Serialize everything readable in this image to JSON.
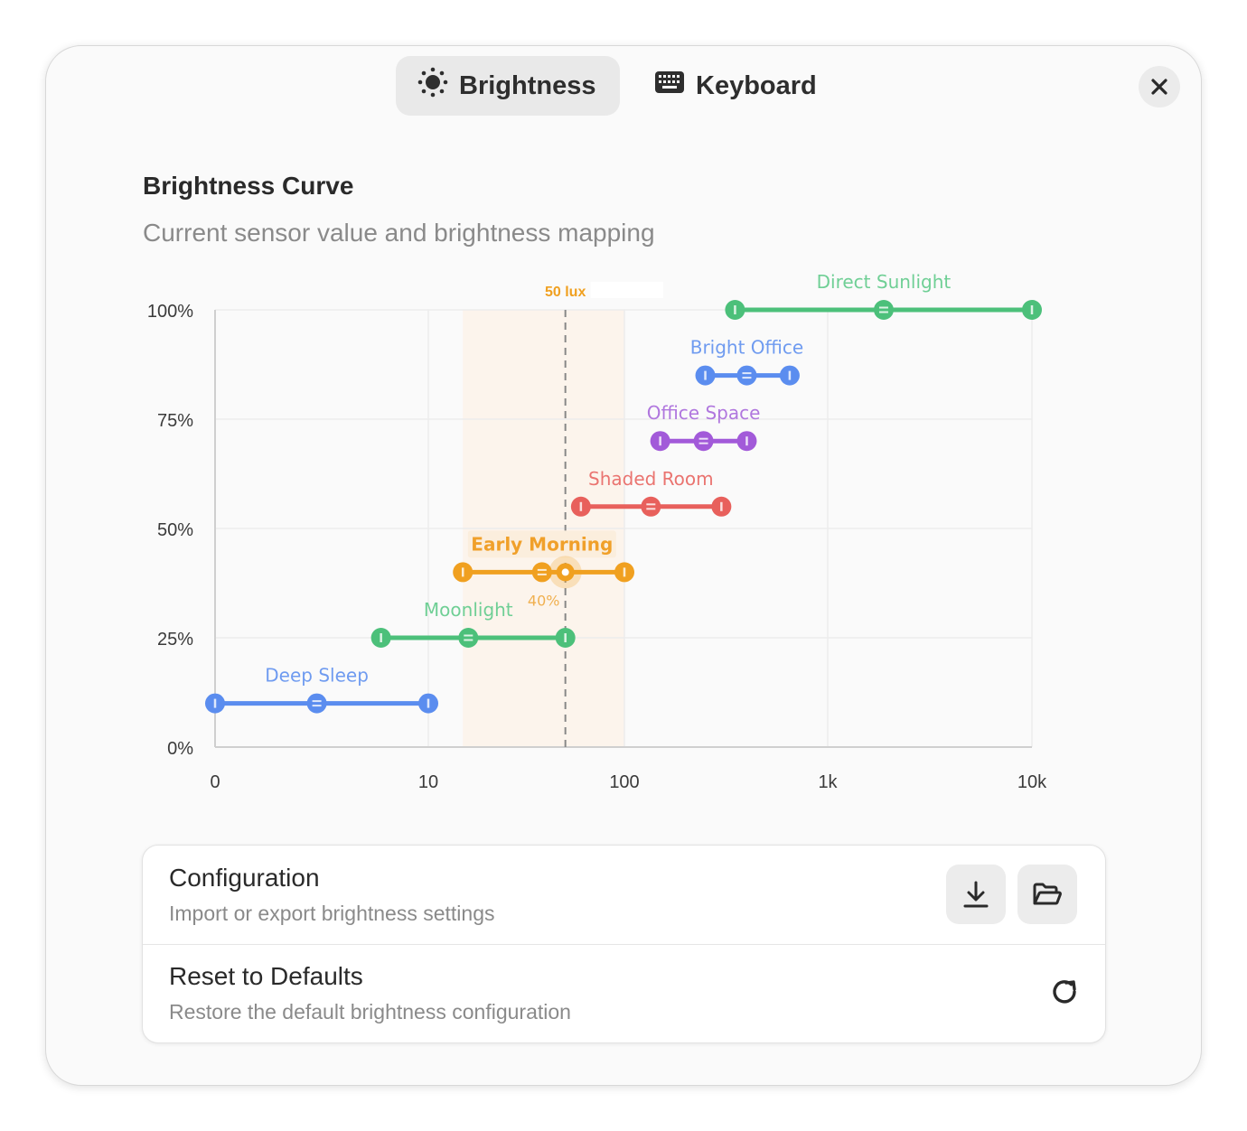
{
  "tabs": [
    {
      "label": "Brightness",
      "icon": "sun-icon",
      "active": true
    },
    {
      "label": "Keyboard",
      "icon": "keyboard-icon",
      "active": false
    }
  ],
  "header": {
    "close_icon": "close-icon"
  },
  "section": {
    "title": "Brightness Curve",
    "subtitle": "Current sensor value and brightness mapping"
  },
  "chart_data": {
    "type": "line",
    "x_scale": "log (0 shown at origin)",
    "x_ticks": [
      "0",
      "10",
      "100",
      "1k",
      "10k"
    ],
    "x_tick_values": [
      0,
      10,
      100,
      1000,
      10000
    ],
    "y_ticks": [
      "0%",
      "25%",
      "50%",
      "75%",
      "100%"
    ],
    "y_tick_values": [
      0,
      25,
      50,
      75,
      100
    ],
    "ylim": [
      0,
      100
    ],
    "grid": true,
    "current": {
      "label": "50 lux",
      "lux": 50,
      "brightness": 40,
      "brightness_label": "40%",
      "active_zone": "Early Morning",
      "zone_range": [
        15,
        100
      ]
    },
    "series": [
      {
        "name": "Deep Sleep",
        "color": "#5b8def",
        "label_color": "#6f9bf0",
        "brightness": 10,
        "min": 0,
        "mid": 3,
        "max": 10
      },
      {
        "name": "Moonlight",
        "color": "#4cc07a",
        "label_color": "#6fcf95",
        "brightness": 25,
        "min": 6,
        "mid": 16,
        "max": 50
      },
      {
        "name": "Early Morning",
        "color": "#f0a020",
        "label_color": "#f0a02a",
        "brightness": 40,
        "min": 15,
        "mid": 38,
        "max": 100
      },
      {
        "name": "Shaded Room",
        "color": "#e8605c",
        "label_color": "#ea7470",
        "brightness": 55,
        "min": 60,
        "mid": 135,
        "max": 300
      },
      {
        "name": "Office Space",
        "color": "#a25ad9",
        "label_color": "#b077de",
        "brightness": 70,
        "min": 150,
        "mid": 245,
        "max": 400
      },
      {
        "name": "Bright Office",
        "color": "#5b8def",
        "label_color": "#6f9bf0",
        "brightness": 85,
        "min": 250,
        "mid": 400,
        "max": 650
      },
      {
        "name": "Direct Sunlight",
        "color": "#4cc07a",
        "label_color": "#6fcf95",
        "brightness": 100,
        "min": 350,
        "mid": 1880,
        "max": 10000
      }
    ]
  },
  "config": {
    "title": "Configuration",
    "subtitle": "Import or export brightness settings",
    "export_icon": "download-icon",
    "import_icon": "folder-open-icon"
  },
  "reset": {
    "title": "Reset to Defaults",
    "subtitle": "Restore the default brightness configuration",
    "icon": "refresh-icon"
  }
}
